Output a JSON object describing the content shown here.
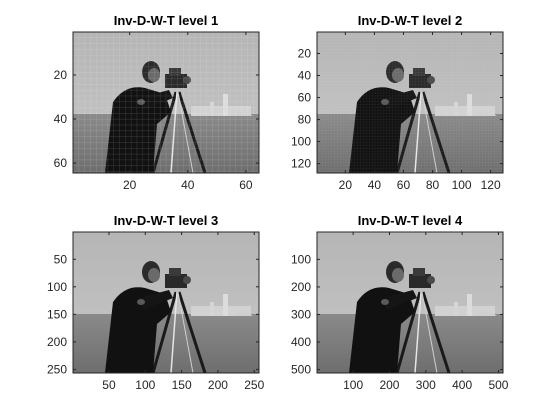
{
  "chart_data": [
    {
      "type": "image",
      "title": "Inv-D-W-T level 1",
      "image_size": [
        64,
        64
      ],
      "xlim": [
        0.5,
        64.5
      ],
      "ylim": [
        0.5,
        64.5
      ],
      "xticks": [
        20,
        40,
        60
      ],
      "yticks": [
        20,
        40,
        60
      ],
      "colormap": "gray",
      "grid": false
    },
    {
      "type": "image",
      "title": "Inv-D-W-T level 2",
      "image_size": [
        128,
        128
      ],
      "xlim": [
        0.5,
        128.5
      ],
      "ylim": [
        0.5,
        128.5
      ],
      "xticks": [
        20,
        40,
        60,
        80,
        100,
        120
      ],
      "yticks": [
        20,
        40,
        60,
        80,
        100,
        120
      ],
      "colormap": "gray",
      "grid": false
    },
    {
      "type": "image",
      "title": "Inv-D-W-T level 3",
      "image_size": [
        256,
        256
      ],
      "xlim": [
        0.5,
        256.5
      ],
      "ylim": [
        0.5,
        256.5
      ],
      "xticks": [
        50,
        100,
        150,
        200,
        250
      ],
      "yticks": [
        50,
        100,
        150,
        200,
        250
      ],
      "colormap": "gray",
      "grid": false
    },
    {
      "type": "image",
      "title": "Inv-D-W-T level 4",
      "image_size": [
        512,
        512
      ],
      "xlim": [
        0.5,
        512.5
      ],
      "ylim": [
        0.5,
        512.5
      ],
      "xticks": [
        100,
        200,
        300,
        400,
        500
      ],
      "yticks": [
        100,
        200,
        300,
        400,
        500
      ],
      "colormap": "gray",
      "grid": false
    }
  ]
}
